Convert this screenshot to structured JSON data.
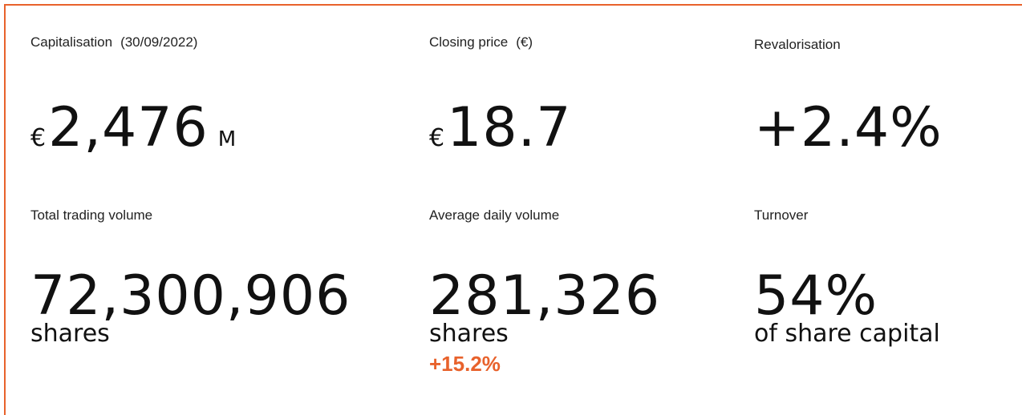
{
  "stats": [
    {
      "label": "Capitalisation",
      "note": "(30/09/2022)",
      "prefix": "€",
      "value": "2,476",
      "suffix": "M"
    },
    {
      "label": "Closing price",
      "note": "(€)",
      "prefix": "€",
      "value": "18.7"
    },
    {
      "label": "Revalorisation",
      "value": "+2.4%"
    },
    {
      "label": "Total trading volume",
      "value": "72,300,906",
      "sub": "shares"
    },
    {
      "label": "Average daily volume",
      "value": "281,326",
      "sub": "shares",
      "change": "+15.2%"
    },
    {
      "label": "Turnover",
      "value": "54%",
      "sub": "of share capital"
    }
  ]
}
